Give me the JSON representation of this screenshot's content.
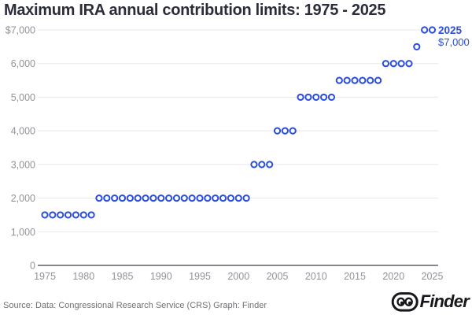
{
  "chart_data": {
    "type": "scatter",
    "title": "Maximum IRA annual contribution limits: 1975 - 2025",
    "x": [
      1975,
      1976,
      1977,
      1978,
      1979,
      1980,
      1981,
      1982,
      1983,
      1984,
      1985,
      1986,
      1987,
      1988,
      1989,
      1990,
      1991,
      1992,
      1993,
      1994,
      1995,
      1996,
      1997,
      1998,
      1999,
      2000,
      2001,
      2002,
      2003,
      2004,
      2005,
      2006,
      2007,
      2008,
      2009,
      2010,
      2011,
      2012,
      2013,
      2014,
      2015,
      2016,
      2017,
      2018,
      2019,
      2020,
      2021,
      2022,
      2023,
      2024,
      2025
    ],
    "values": [
      1500,
      1500,
      1500,
      1500,
      1500,
      1500,
      1500,
      2000,
      2000,
      2000,
      2000,
      2000,
      2000,
      2000,
      2000,
      2000,
      2000,
      2000,
      2000,
      2000,
      2000,
      2000,
      2000,
      2000,
      2000,
      2000,
      2000,
      3000,
      3000,
      3000,
      4000,
      4000,
      4000,
      5000,
      5000,
      5000,
      5000,
      5000,
      5500,
      5500,
      5500,
      5500,
      5500,
      5500,
      6000,
      6000,
      6000,
      6000,
      6500,
      7000,
      7000
    ],
    "xlabel": "",
    "ylabel": "",
    "xlim": [
      1974,
      2026.5
    ],
    "ylim": [
      0,
      7000
    ],
    "xticks": [
      1975,
      1980,
      1985,
      1990,
      1995,
      2000,
      2005,
      2010,
      2015,
      2020,
      2025
    ],
    "yticks": [
      0,
      1000,
      2000,
      3000,
      4000,
      5000,
      6000,
      7000
    ],
    "ytick_labels": [
      "0",
      "1,000",
      "2,000",
      "3,000",
      "4,000",
      "5,000",
      "6,000",
      "$7,000"
    ],
    "grid": true,
    "legend": "none",
    "marker": "open-circle",
    "annotation": {
      "year_label": "2025",
      "value_label": "$7,000"
    }
  },
  "footer": {
    "source": "Source: Data: Congressional Research Service (CRS) Graph: Finder",
    "brand_name": "Finder"
  },
  "colors": {
    "accent_blue": "#2b4ddd",
    "title_text": "#2b2d3a",
    "tick_text": "#909398",
    "gridline": "#e8e8ea",
    "axis_line": "#85878a",
    "source_text": "#6f7276",
    "logo_black": "#17181c"
  }
}
